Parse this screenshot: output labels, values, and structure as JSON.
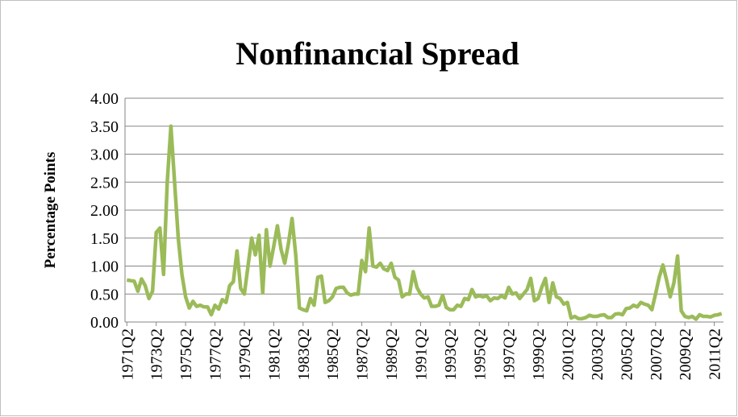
{
  "chart_data": {
    "type": "line",
    "title": "Nonfinancial Spread",
    "y_label": "Percentage Points",
    "categories": [
      "1971Q2",
      null,
      null,
      null,
      null,
      null,
      null,
      null,
      "1973Q2",
      null,
      null,
      null,
      null,
      null,
      null,
      null,
      "1975Q2",
      null,
      null,
      null,
      null,
      null,
      null,
      null,
      "1977Q2",
      null,
      null,
      null,
      null,
      null,
      null,
      null,
      "1979Q2",
      null,
      null,
      null,
      null,
      null,
      null,
      null,
      "1981Q2",
      null,
      null,
      null,
      null,
      null,
      null,
      null,
      "1983Q2",
      null,
      null,
      null,
      null,
      null,
      null,
      null,
      "1985Q2",
      null,
      null,
      null,
      null,
      null,
      null,
      null,
      "1987Q2",
      null,
      null,
      null,
      null,
      null,
      null,
      null,
      "1989Q2",
      null,
      null,
      null,
      null,
      null,
      null,
      null,
      "1991Q2",
      null,
      null,
      null,
      null,
      null,
      null,
      null,
      "1993Q2",
      null,
      null,
      null,
      null,
      null,
      null,
      null,
      "1995Q2",
      null,
      null,
      null,
      null,
      null,
      null,
      null,
      "1997Q2",
      null,
      null,
      null,
      null,
      null,
      null,
      null,
      "1999Q2",
      null,
      null,
      null,
      null,
      null,
      null,
      null,
      "2001Q2",
      null,
      null,
      null,
      null,
      null,
      null,
      null,
      "2003Q2",
      null,
      null,
      null,
      null,
      null,
      null,
      null,
      "2005Q2",
      null,
      null,
      null,
      null,
      null,
      null,
      null,
      "2007Q2",
      null,
      null,
      null,
      null,
      null,
      null,
      null,
      "2009Q2",
      null,
      null,
      null,
      null,
      null,
      null,
      null,
      "2011Q2",
      null,
      null
    ],
    "values": [
      0.75,
      0.74,
      0.73,
      0.55,
      0.77,
      0.65,
      0.42,
      0.55,
      1.6,
      1.68,
      0.85,
      2.5,
      3.5,
      2.5,
      1.5,
      0.85,
      0.45,
      0.25,
      0.37,
      0.28,
      0.3,
      0.27,
      0.27,
      0.13,
      0.3,
      0.23,
      0.4,
      0.35,
      0.65,
      0.72,
      1.27,
      0.6,
      0.5,
      1.0,
      1.5,
      1.2,
      1.55,
      0.52,
      1.65,
      1.0,
      1.35,
      1.72,
      1.3,
      1.05,
      1.4,
      1.85,
      1.2,
      0.25,
      0.22,
      0.2,
      0.42,
      0.3,
      0.8,
      0.82,
      0.35,
      0.38,
      0.45,
      0.6,
      0.62,
      0.62,
      0.52,
      0.48,
      0.5,
      0.5,
      1.1,
      0.9,
      1.68,
      1.0,
      0.98,
      1.05,
      0.95,
      0.92,
      1.05,
      0.8,
      0.75,
      0.45,
      0.5,
      0.5,
      0.9,
      0.62,
      0.5,
      0.43,
      0.45,
      0.28,
      0.28,
      0.3,
      0.48,
      0.26,
      0.22,
      0.22,
      0.3,
      0.28,
      0.42,
      0.4,
      0.58,
      0.45,
      0.47,
      0.45,
      0.47,
      0.38,
      0.43,
      0.42,
      0.47,
      0.43,
      0.62,
      0.5,
      0.52,
      0.42,
      0.5,
      0.58,
      0.78,
      0.38,
      0.42,
      0.62,
      0.78,
      0.35,
      0.7,
      0.45,
      0.42,
      0.32,
      0.35,
      0.07,
      0.1,
      0.06,
      0.06,
      0.08,
      0.12,
      0.1,
      0.1,
      0.12,
      0.13,
      0.08,
      0.08,
      0.14,
      0.15,
      0.13,
      0.24,
      0.25,
      0.3,
      0.27,
      0.35,
      0.32,
      0.3,
      0.22,
      0.5,
      0.8,
      1.02,
      0.75,
      0.45,
      0.7,
      1.18,
      0.2,
      0.1,
      0.08,
      0.1,
      0.05,
      0.13,
      0.1,
      0.1,
      0.09,
      0.12,
      0.13,
      0.15
    ],
    "color": "#9bbb59",
    "ylim": [
      0,
      4
    ],
    "yticks": [
      {
        "value": 0,
        "label": "0.00"
      },
      {
        "value": 0.5,
        "label": "0.50"
      },
      {
        "value": 1,
        "label": "1.00"
      },
      {
        "value": 1.5,
        "label": "1.50"
      },
      {
        "value": 2,
        "label": "2.00"
      },
      {
        "value": 2.5,
        "label": "2.50"
      },
      {
        "value": 3,
        "label": "3.00"
      },
      {
        "value": 3.5,
        "label": "3.50"
      },
      {
        "value": 4,
        "label": "4.00"
      }
    ],
    "grid": true
  }
}
